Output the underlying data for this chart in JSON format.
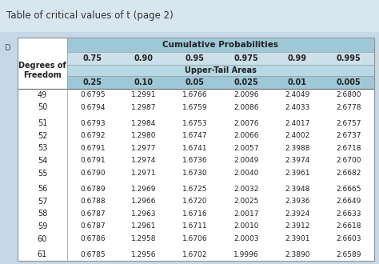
{
  "title": "Table of critical values of t (page 2)",
  "header_cumulative": "Cumulative Probabilities",
  "header_uppertail": "Upper-Tail Areas",
  "col_headers_top": [
    "0.75",
    "0.90",
    "0.95",
    "0.975",
    "0.99",
    "0.995"
  ],
  "col_headers_bottom": [
    "0.25",
    "0.10",
    "0.05",
    "0.025",
    "0.01",
    "0.005"
  ],
  "row_label_line1": "Degrees of",
  "row_label_line2": "Freedom",
  "degrees": [
    49,
    50,
    51,
    52,
    53,
    54,
    55,
    56,
    57,
    58,
    59,
    60,
    61
  ],
  "data": [
    [
      0.6795,
      1.2991,
      1.6766,
      2.0096,
      2.4049,
      2.68
    ],
    [
      0.6794,
      1.2987,
      1.6759,
      2.0086,
      2.4033,
      2.6778
    ],
    [
      0.6793,
      1.2984,
      1.6753,
      2.0076,
      2.4017,
      2.6757
    ],
    [
      0.6792,
      1.298,
      1.6747,
      2.0066,
      2.4002,
      2.6737
    ],
    [
      0.6791,
      1.2977,
      1.6741,
      2.0057,
      2.3988,
      2.6718
    ],
    [
      0.6791,
      1.2974,
      1.6736,
      2.0049,
      2.3974,
      2.67
    ],
    [
      0.679,
      1.2971,
      1.673,
      2.004,
      2.3961,
      2.6682
    ],
    [
      0.6789,
      1.2969,
      1.6725,
      2.0032,
      2.3948,
      2.6665
    ],
    [
      0.6788,
      1.2966,
      1.672,
      2.0025,
      2.3936,
      2.6649
    ],
    [
      0.6787,
      1.2963,
      1.6716,
      2.0017,
      2.3924,
      2.6633
    ],
    [
      0.6787,
      1.2961,
      1.6711,
      2.001,
      2.3912,
      2.6618
    ],
    [
      0.6786,
      1.2958,
      1.6706,
      2.0003,
      2.3901,
      2.6603
    ],
    [
      0.6785,
      1.2956,
      1.6702,
      1.9996,
      2.389,
      2.6589
    ]
  ],
  "outer_bg": "#c5d8e8",
  "title_bg": "#d8e6f0",
  "table_white": "#ffffff",
  "header_blue1": "#9ec8d8",
  "header_blue2": "#b8d8e4",
  "header_blue3": "#cce0ea",
  "header_blue4": "#9ec8d8",
  "border_color": "#999999",
  "text_color": "#222222",
  "group_breaks_before": [
    2,
    7,
    12
  ]
}
